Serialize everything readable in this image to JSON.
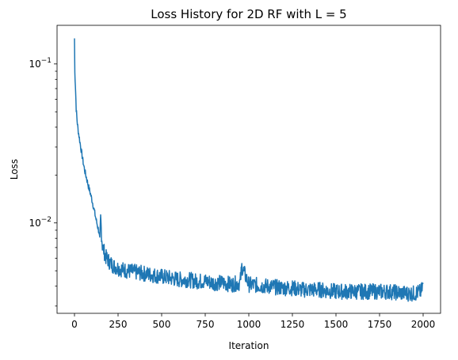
{
  "chart_data": {
    "type": "line",
    "title": "Loss History for 2D RF with L = 5",
    "xlabel": "Iteration",
    "ylabel": "Loss",
    "yscale": "log",
    "xlim": [
      -100,
      2100
    ],
    "ylim": [
      0.0027,
      0.175
    ],
    "grid": false,
    "legend": "none",
    "line_color": "#1f77b4",
    "x_ticks": [
      0,
      250,
      500,
      750,
      1000,
      1250,
      1500,
      1750,
      2000
    ],
    "x_tick_labels": [
      "0",
      "250",
      "500",
      "750",
      "1000",
      "1250",
      "1500",
      "1750",
      "2000"
    ],
    "y_major_ticks": [
      0.01,
      0.1
    ],
    "y_major_tick_labels": [
      "10",
      "10"
    ],
    "y_major_tick_exponents": [
      "−2",
      "−1"
    ],
    "y_minor_ticks": [
      0.003,
      0.004,
      0.005,
      0.006,
      0.007,
      0.008,
      0.009,
      0.02,
      0.03,
      0.04,
      0.05,
      0.06,
      0.07,
      0.08,
      0.09
    ],
    "series": [
      {
        "x": [
          0,
          2,
          5,
          10,
          15,
          20,
          30,
          40,
          50,
          60,
          70,
          80,
          90,
          100,
          110,
          120,
          130,
          140,
          145,
          150,
          155,
          160,
          170,
          180,
          200,
          220,
          250,
          300,
          350,
          400,
          450,
          500,
          550,
          600,
          650,
          700,
          750,
          800,
          850,
          900,
          950,
          960,
          1000,
          1100,
          1200,
          1250,
          1300,
          1400,
          1500,
          1600,
          1700,
          1750,
          1800,
          1900,
          1950,
          1990,
          2000
        ],
        "y": [
          0.145,
          0.088,
          0.075,
          0.052,
          0.044,
          0.039,
          0.033,
          0.028,
          0.024,
          0.021,
          0.019,
          0.017,
          0.0155,
          0.014,
          0.0125,
          0.011,
          0.0098,
          0.0088,
          0.0078,
          0.011,
          0.0085,
          0.0072,
          0.0066,
          0.0061,
          0.0057,
          0.0054,
          0.0052,
          0.005,
          0.0049,
          0.0048,
          0.0047,
          0.0046,
          0.0045,
          0.0044,
          0.0044,
          0.0043,
          0.0043,
          0.0042,
          0.0042,
          0.0041,
          0.0042,
          0.0053,
          0.0041,
          0.004,
          0.0039,
          0.0039,
          0.0038,
          0.0038,
          0.0037,
          0.0037,
          0.0037,
          0.0037,
          0.0037,
          0.0036,
          0.0036,
          0.0037,
          0.0042
        ]
      }
    ]
  }
}
